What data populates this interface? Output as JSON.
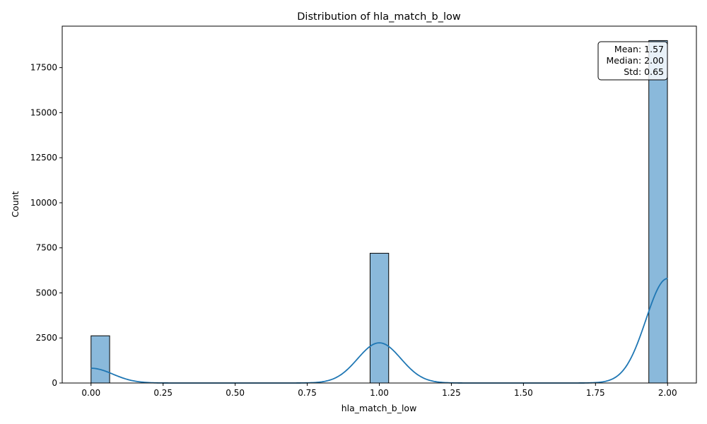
{
  "chart_data": {
    "type": "bar",
    "subtype": "histogram-with-kde",
    "title": "Distribution of hla_match_b_low",
    "xlabel": "hla_match_b_low",
    "ylabel": "Count",
    "xlim": [
      -0.1,
      2.1
    ],
    "ylim": [
      0,
      19800
    ],
    "x_ticks": [
      0.0,
      0.25,
      0.5,
      0.75,
      1.0,
      1.25,
      1.5,
      1.75,
      2.0
    ],
    "x_tick_labels": [
      "0.00",
      "0.25",
      "0.50",
      "0.75",
      "1.00",
      "1.25",
      "1.50",
      "1.75",
      "2.00"
    ],
    "y_ticks": [
      0,
      2500,
      5000,
      7500,
      10000,
      12500,
      15000,
      17500
    ],
    "y_tick_labels": [
      "0",
      "2500",
      "5000",
      "7500",
      "10000",
      "12500",
      "15000",
      "17500"
    ],
    "bin_width": 0.0645,
    "bars": [
      {
        "x_start": 0.0,
        "value": 2620
      },
      {
        "x_start": 0.968,
        "value": 7200
      },
      {
        "x_start": 1.935,
        "value": 19000
      }
    ],
    "kde_peaks": [
      {
        "center": 0.0,
        "height": 820,
        "sigma": 0.075
      },
      {
        "center": 1.0,
        "height": 2230,
        "sigma": 0.075
      },
      {
        "center": 2.0,
        "height": 5800,
        "sigma": 0.075
      }
    ],
    "stats_box": [
      "Mean: 1.57",
      "Median: 2.00",
      "Std: 0.65"
    ],
    "grid": false,
    "colors": {
      "bar_fill": "#8ab9db",
      "bar_edge": "#000000",
      "kde_line": "#1f77b4"
    }
  }
}
